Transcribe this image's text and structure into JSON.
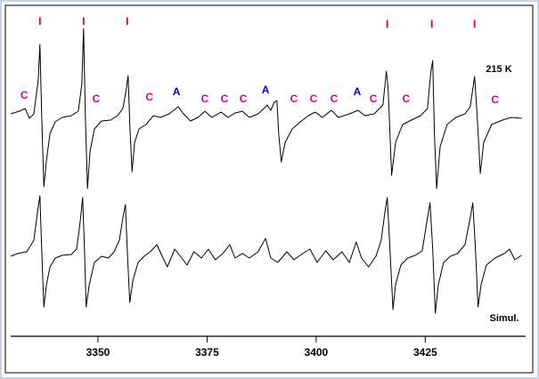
{
  "chart_data": {
    "type": "line",
    "xlim": [
      3330,
      3448
    ],
    "ylim": [
      0,
      373
    ],
    "xticks": [
      3350,
      3375,
      3400,
      3425
    ],
    "series": [
      {
        "name": "215 K",
        "color": "#000000",
        "x": [
          3330.0,
          3332.0,
          3333.3,
          3334.3,
          3335.3,
          3336.3,
          3336.7,
          3337.1,
          3337.6,
          3338.2,
          3339.0,
          3340.2,
          3341.8,
          3343.9,
          3345.5,
          3346.3,
          3346.7,
          3347.1,
          3347.6,
          3348.2,
          3349.2,
          3350.8,
          3352.9,
          3354.5,
          3355.7,
          3356.5,
          3356.9,
          3357.3,
          3357.8,
          3358.4,
          3359.4,
          3361.0,
          3362.7,
          3364.3,
          3366.3,
          3368.4,
          3369.6,
          3371.2,
          3372.9,
          3374.5,
          3376.1,
          3378.2,
          3379.8,
          3381.4,
          3383.1,
          3384.7,
          3386.7,
          3388.0,
          3388.8,
          3389.6,
          3390.4,
          3391.0,
          3391.4,
          3392.0,
          3392.9,
          3394.5,
          3396.1,
          3398.2,
          3399.8,
          3401.4,
          3403.5,
          3405.1,
          3407.6,
          3409.6,
          3411.2,
          3413.3,
          3415.3,
          3416.1,
          3416.5,
          3416.9,
          3417.3,
          3418.2,
          3419.8,
          3421.8,
          3423.9,
          3425.5,
          3426.3,
          3426.7,
          3427.1,
          3427.6,
          3428.4,
          3430.0,
          3432.0,
          3434.1,
          3435.3,
          3436.3,
          3436.9,
          3437.6,
          3438.4,
          3440.2,
          3442.7,
          3444.7,
          3447.1
        ],
        "values": [
          250,
          253,
          256,
          245,
          250,
          288,
          328,
          248,
          168,
          198,
          228,
          241,
          246,
          248,
          253,
          283,
          346,
          248,
          166,
          208,
          233,
          242,
          243,
          248,
          256,
          278,
          293,
          238,
          185,
          218,
          233,
          238,
          248,
          246,
          250,
          258,
          250,
          242,
          246,
          253,
          246,
          252,
          246,
          251,
          253,
          246,
          250,
          256,
          260,
          254,
          263,
          265,
          228,
          196,
          218,
          233,
          240,
          248,
          252,
          246,
          254,
          246,
          250,
          254,
          248,
          250,
          260,
          298,
          278,
          228,
          181,
          218,
          238,
          243,
          248,
          256,
          298,
          310,
          228,
          166,
          213,
          238,
          246,
          250,
          258,
          292,
          248,
          183,
          218,
          238,
          243,
          246,
          245
        ]
      },
      {
        "name": "Simul.",
        "color": "#000000",
        "x": [
          3330.0,
          3331.6,
          3333.7,
          3335.3,
          3336.1,
          3336.7,
          3337.1,
          3337.6,
          3338.2,
          3339.0,
          3340.2,
          3341.8,
          3343.9,
          3345.1,
          3345.9,
          3346.5,
          3346.9,
          3347.3,
          3348.0,
          3349.2,
          3350.8,
          3352.4,
          3353.7,
          3354.9,
          3355.7,
          3356.3,
          3356.7,
          3357.3,
          3358.0,
          3359.2,
          3360.6,
          3362.2,
          3363.5,
          3364.7,
          3365.9,
          3367.6,
          3369.2,
          3370.4,
          3372.0,
          3373.7,
          3375.3,
          3376.9,
          3378.6,
          3380.2,
          3381.4,
          3383.1,
          3384.7,
          3386.7,
          3388.4,
          3389.6,
          3391.2,
          3393.3,
          3394.9,
          3396.9,
          3398.6,
          3400.2,
          3402.2,
          3403.9,
          3405.9,
          3407.6,
          3409.2,
          3410.4,
          3412.0,
          3413.7,
          3414.9,
          3415.7,
          3416.3,
          3416.9,
          3417.6,
          3418.2,
          3419.4,
          3421.0,
          3422.7,
          3424.3,
          3425.5,
          3426.1,
          3426.7,
          3427.3,
          3428.0,
          3429.2,
          3430.8,
          3432.4,
          3434.1,
          3435.3,
          3435.9,
          3436.5,
          3437.1,
          3437.8,
          3439.0,
          3441.0,
          3443.1,
          3444.3,
          3445.5,
          3447.1
        ],
        "values": [
          90,
          93,
          95,
          108,
          138,
          158,
          98,
          33,
          58,
          78,
          88,
          91,
          92,
          98,
          128,
          156,
          98,
          33,
          58,
          83,
          90,
          88,
          95,
          108,
          133,
          148,
          98,
          38,
          63,
          83,
          90,
          96,
          103,
          90,
          78,
          98,
          88,
          80,
          95,
          88,
          98,
          86,
          93,
          103,
          88,
          93,
          88,
          95,
          110,
          88,
          83,
          95,
          86,
          93,
          98,
          83,
          96,
          86,
          95,
          83,
          106,
          88,
          78,
          90,
          108,
          138,
          156,
          98,
          30,
          58,
          80,
          88,
          91,
          96,
          133,
          150,
          98,
          26,
          58,
          83,
          90,
          93,
          103,
          133,
          150,
          98,
          33,
          58,
          80,
          88,
          93,
          98,
          86,
          91
        ]
      }
    ],
    "annotations": [
      {
        "text": "I",
        "x": 3336.7,
        "y": 353,
        "color": "#cc0022"
      },
      {
        "text": "I",
        "x": 3346.7,
        "y": 353,
        "color": "#cc0022"
      },
      {
        "text": "I",
        "x": 3356.7,
        "y": 353,
        "color": "#cc0022"
      },
      {
        "text": "I",
        "x": 3416.3,
        "y": 350,
        "color": "#cc0022"
      },
      {
        "text": "I",
        "x": 3426.5,
        "y": 350,
        "color": "#cc0022"
      },
      {
        "text": "I",
        "x": 3436.3,
        "y": 350,
        "color": "#cc0022"
      },
      {
        "text": "C",
        "x": 3333.1,
        "y": 270,
        "color": "#e0007a"
      },
      {
        "text": "C",
        "x": 3349.6,
        "y": 266,
        "color": "#e0007a"
      },
      {
        "text": "C",
        "x": 3361.8,
        "y": 268,
        "color": "#e0007a"
      },
      {
        "text": "C",
        "x": 3374.5,
        "y": 266,
        "color": "#e0007a"
      },
      {
        "text": "C",
        "x": 3379.0,
        "y": 266,
        "color": "#e0007a"
      },
      {
        "text": "C",
        "x": 3383.3,
        "y": 266,
        "color": "#e0007a"
      },
      {
        "text": "C",
        "x": 3394.9,
        "y": 266,
        "color": "#e0007a"
      },
      {
        "text": "C",
        "x": 3399.4,
        "y": 266,
        "color": "#e0007a"
      },
      {
        "text": "C",
        "x": 3404.1,
        "y": 266,
        "color": "#e0007a"
      },
      {
        "text": "C",
        "x": 3413.1,
        "y": 266,
        "color": "#e0007a"
      },
      {
        "text": "C",
        "x": 3420.6,
        "y": 266,
        "color": "#e0007a"
      },
      {
        "text": "C",
        "x": 3441.0,
        "y": 265,
        "color": "#e0007a"
      },
      {
        "text": "A",
        "x": 3368.0,
        "y": 274,
        "color": "#0000cc"
      },
      {
        "text": "A",
        "x": 3388.4,
        "y": 276,
        "color": "#0000cc"
      },
      {
        "text": "A",
        "x": 3409.4,
        "y": 274,
        "color": "#0000cc"
      }
    ]
  }
}
